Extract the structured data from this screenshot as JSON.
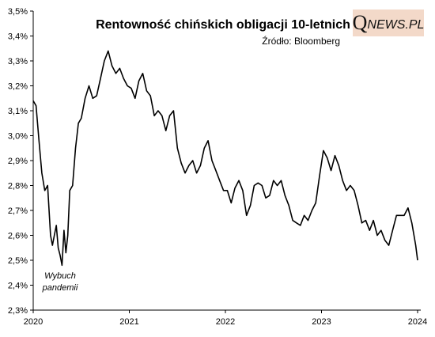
{
  "chart_data": {
    "type": "line",
    "title": "Rentowność chińskich obligacji 10-letnich",
    "subtitle": "Źródło: Bloomberg",
    "annotation": [
      "Wybuch",
      "pandemii"
    ],
    "xlabel": "",
    "ylabel": "",
    "x_ticks": [
      "2020",
      "2021",
      "2022",
      "2023",
      "2024"
    ],
    "y_ticks": [
      "2,3%",
      "2,4%",
      "2,5%",
      "2,6%",
      "2,7%",
      "2,8%",
      "2,9%",
      "3,0%",
      "3,1%",
      "3,2%",
      "3,3%",
      "3,4%",
      "3,5%"
    ],
    "xlim": [
      2020.0,
      2024.0
    ],
    "ylim": [
      2.3,
      3.5
    ],
    "grid": false,
    "legend": "none",
    "line_color": "#000000",
    "series": [
      {
        "x": [
          2020.0,
          2020.03,
          2020.06,
          2020.09,
          2020.12,
          2020.15,
          2020.18,
          2020.2,
          2020.22,
          2020.24,
          2020.26,
          2020.28,
          2020.3,
          2020.32,
          2020.34,
          2020.36,
          2020.38,
          2020.41,
          2020.44,
          2020.47,
          2020.5,
          2020.54,
          2020.58,
          2020.62,
          2020.66,
          2020.7,
          2020.74,
          2020.78,
          2020.82,
          2020.86,
          2020.9,
          2020.94,
          2020.98,
          2021.02,
          2021.06,
          2021.1,
          2021.14,
          2021.18,
          2021.22,
          2021.26,
          2021.3,
          2021.34,
          2021.38,
          2021.42,
          2021.46,
          2021.5,
          2021.54,
          2021.58,
          2021.62,
          2021.66,
          2021.7,
          2021.74,
          2021.78,
          2021.82,
          2021.86,
          2021.9,
          2021.94,
          2021.98,
          2022.02,
          2022.06,
          2022.1,
          2022.14,
          2022.18,
          2022.22,
          2022.26,
          2022.3,
          2022.34,
          2022.38,
          2022.42,
          2022.46,
          2022.5,
          2022.54,
          2022.58,
          2022.62,
          2022.66,
          2022.7,
          2022.74,
          2022.78,
          2022.82,
          2022.86,
          2022.9,
          2022.94,
          2022.98,
          2023.02,
          2023.06,
          2023.1,
          2023.14,
          2023.18,
          2023.22,
          2023.26,
          2023.3,
          2023.34,
          2023.38,
          2023.42,
          2023.46,
          2023.5,
          2023.54,
          2023.58,
          2023.62,
          2023.66,
          2023.7,
          2023.74,
          2023.78,
          2023.82,
          2023.86,
          2023.9,
          2023.94,
          2023.98,
          2024.0
        ],
        "y": [
          3.14,
          3.12,
          2.98,
          2.85,
          2.78,
          2.8,
          2.6,
          2.56,
          2.6,
          2.64,
          2.55,
          2.52,
          2.48,
          2.62,
          2.53,
          2.6,
          2.78,
          2.8,
          2.95,
          3.05,
          3.07,
          3.15,
          3.2,
          3.15,
          3.16,
          3.23,
          3.3,
          3.34,
          3.28,
          3.25,
          3.27,
          3.23,
          3.2,
          3.19,
          3.15,
          3.22,
          3.25,
          3.18,
          3.16,
          3.08,
          3.1,
          3.08,
          3.02,
          3.08,
          3.1,
          2.95,
          2.89,
          2.85,
          2.88,
          2.9,
          2.85,
          2.88,
          2.95,
          2.98,
          2.9,
          2.86,
          2.82,
          2.78,
          2.78,
          2.73,
          2.79,
          2.82,
          2.78,
          2.68,
          2.72,
          2.8,
          2.81,
          2.8,
          2.75,
          2.76,
          2.82,
          2.8,
          2.82,
          2.76,
          2.72,
          2.66,
          2.65,
          2.64,
          2.68,
          2.66,
          2.7,
          2.73,
          2.84,
          2.94,
          2.91,
          2.86,
          2.92,
          2.88,
          2.82,
          2.78,
          2.8,
          2.78,
          2.72,
          2.65,
          2.66,
          2.62,
          2.66,
          2.6,
          2.62,
          2.58,
          2.56,
          2.62,
          2.68,
          2.68,
          2.68,
          2.71,
          2.65,
          2.56,
          2.5
        ]
      }
    ]
  },
  "logo": {
    "q": "Q",
    "rest": "NEWS.PL"
  }
}
